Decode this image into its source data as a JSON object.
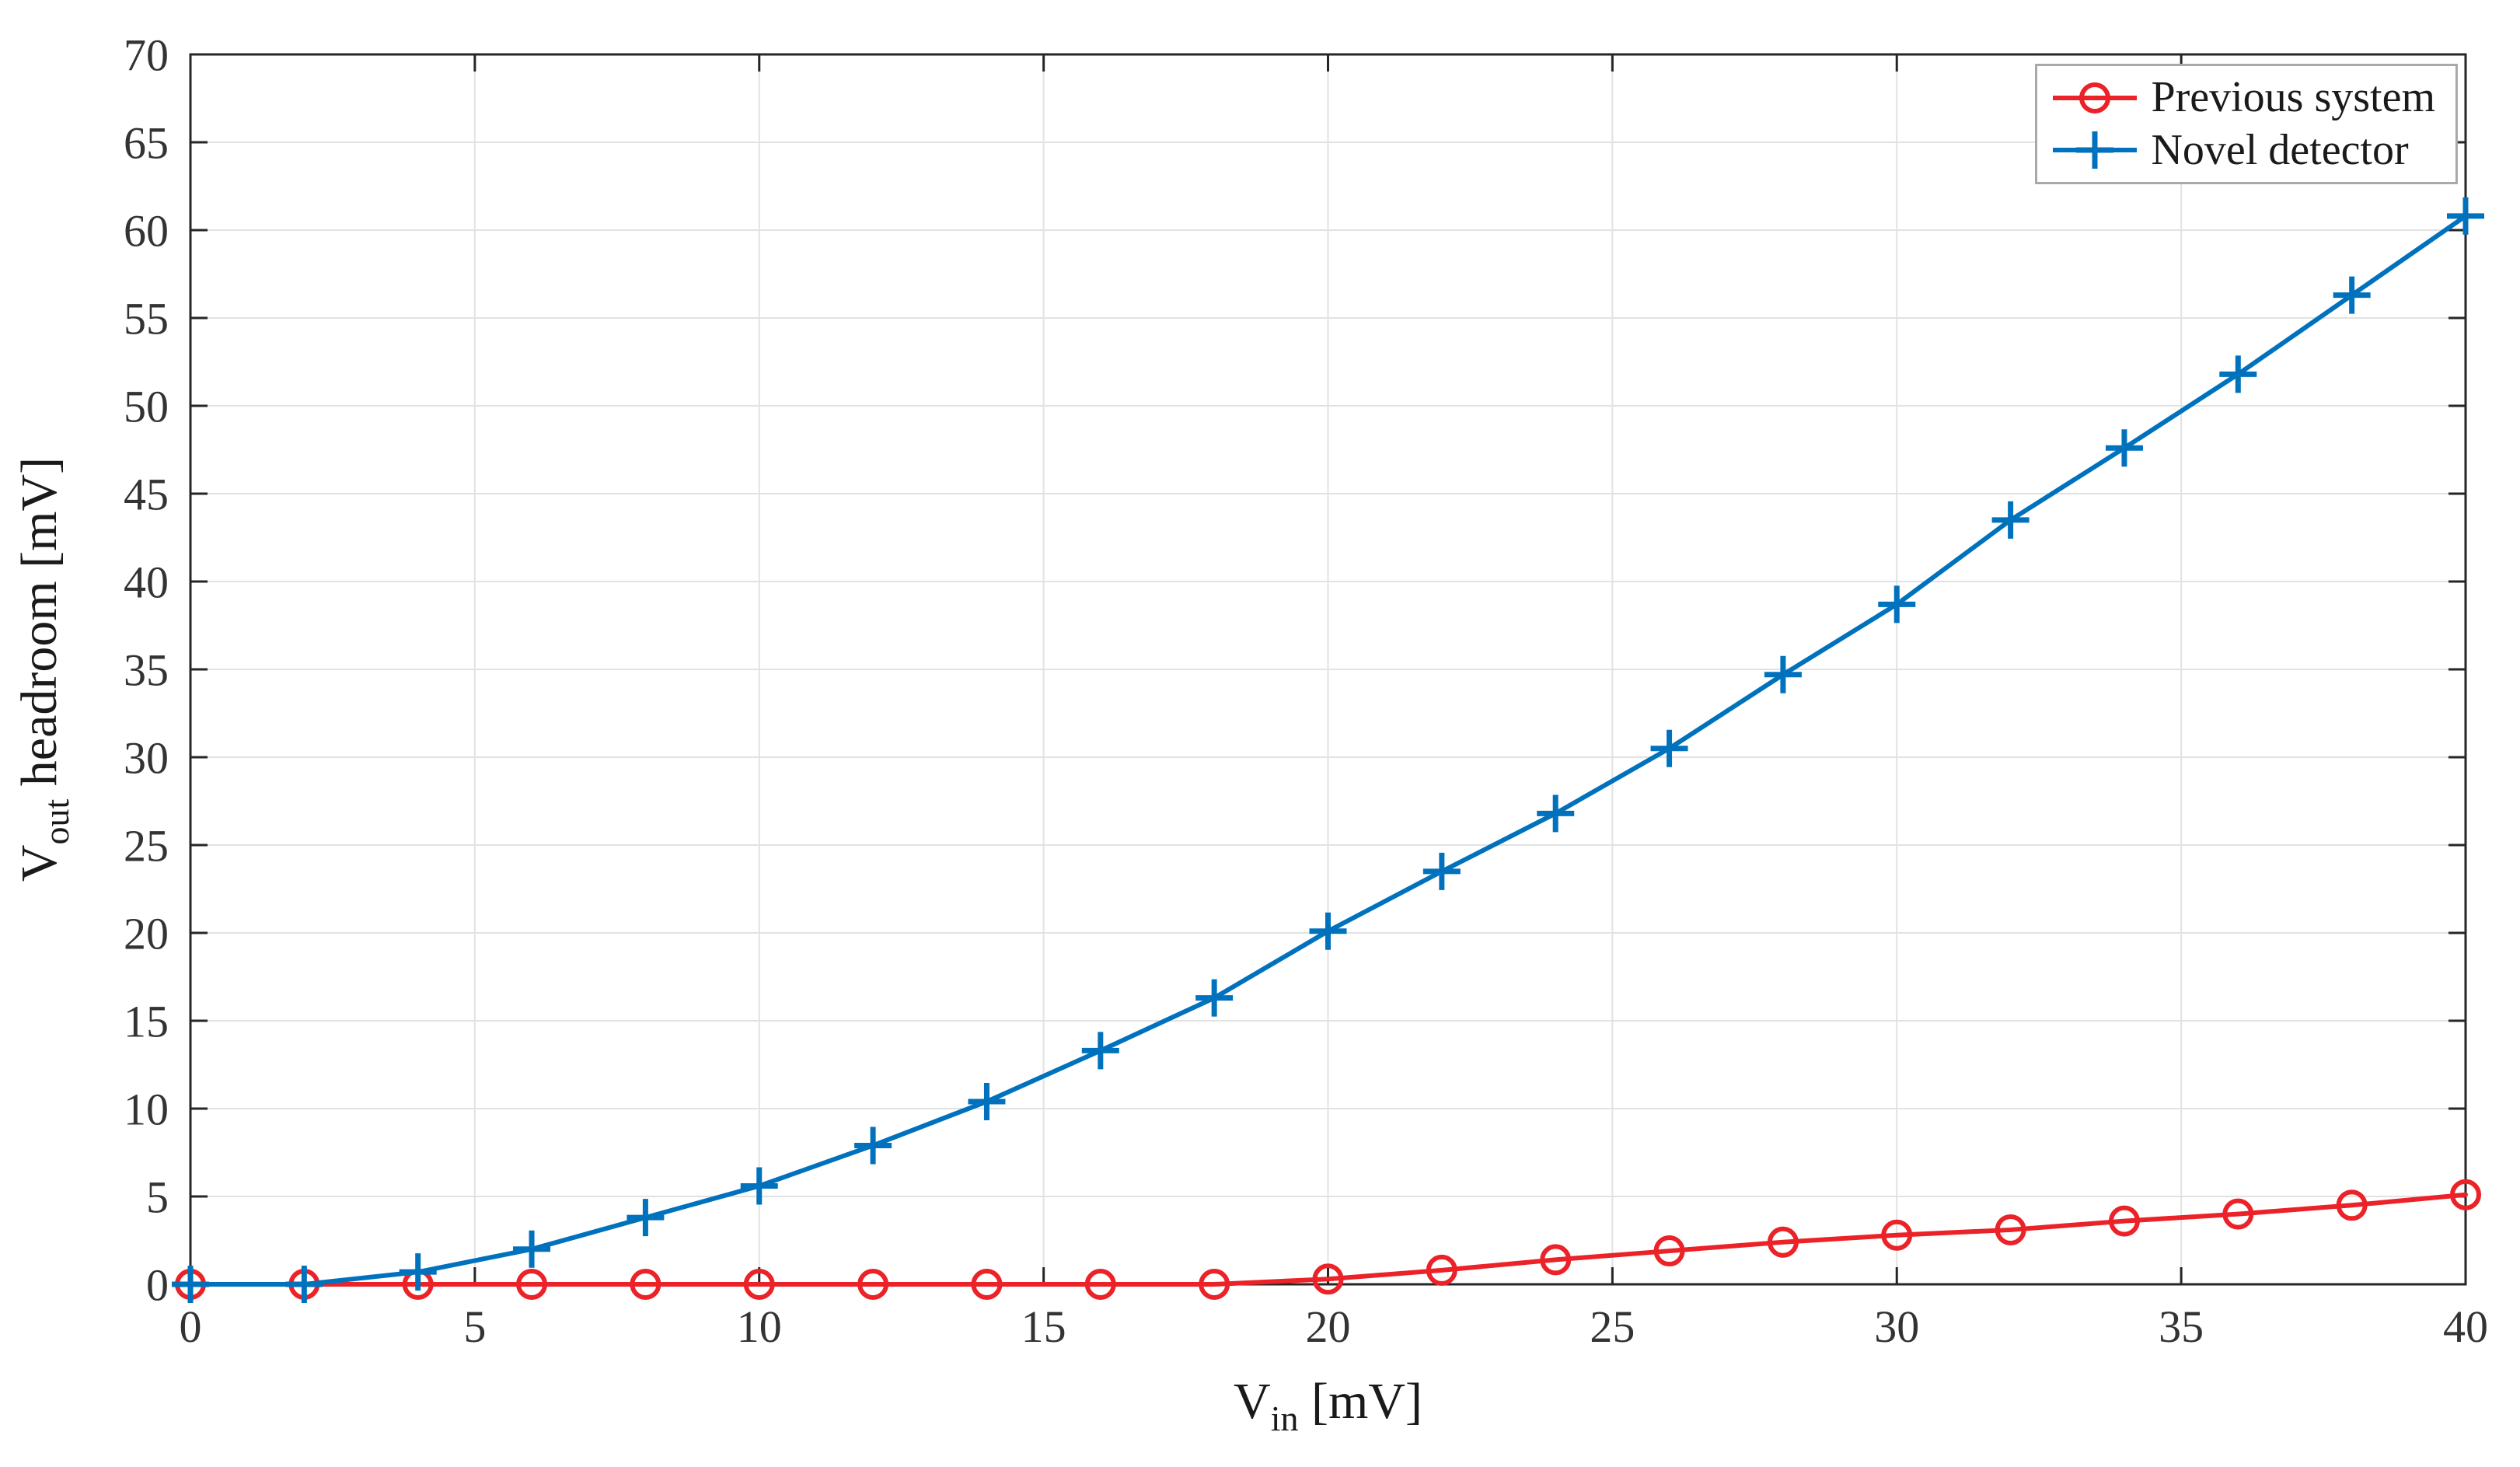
{
  "figure": {
    "background": "#ffffff"
  },
  "chart_data": {
    "type": "line",
    "title": "",
    "xlabel": "V_in [mV]",
    "ylabel": "V_out headroom [mV]",
    "xlabel_parts": {
      "pre": "V",
      "sub": "in",
      "post": " [mV]"
    },
    "ylabel_parts": {
      "pre": "V",
      "sub": "out",
      "post": " headroom [mV]"
    },
    "xlim": [
      0,
      40
    ],
    "ylim": [
      0,
      70
    ],
    "x_ticks": [
      0,
      5,
      10,
      15,
      20,
      25,
      30,
      35,
      40
    ],
    "y_ticks": [
      0,
      5,
      10,
      15,
      20,
      25,
      30,
      35,
      40,
      45,
      50,
      55,
      60,
      65,
      70
    ],
    "grid": true,
    "legend_position": "top-right",
    "x": [
      0,
      2,
      4,
      6,
      8,
      10,
      12,
      14,
      16,
      18,
      20,
      22,
      24,
      26,
      28,
      30,
      32,
      34,
      36,
      38,
      40
    ],
    "series": [
      {
        "name": "Previous system",
        "color": "#eb2228",
        "marker": "circle",
        "values": [
          0,
          0,
          0,
          0,
          0,
          0,
          0,
          0,
          0,
          0,
          0.3,
          0.8,
          1.4,
          1.9,
          2.4,
          2.8,
          3.1,
          3.6,
          4.0,
          4.5,
          5.1
        ]
      },
      {
        "name": "Novel detector",
        "color": "#0072bd",
        "marker": "plus",
        "values": [
          0,
          0,
          0.7,
          2.0,
          3.8,
          5.6,
          7.9,
          10.4,
          13.3,
          16.3,
          20.1,
          23.5,
          26.8,
          30.5,
          34.7,
          38.7,
          43.5,
          47.6,
          51.8,
          56.3,
          60.8
        ]
      }
    ],
    "colors": {
      "grid": "#e2e2e2",
      "axis": "#262626",
      "tick_label": "#333333",
      "legend_border": "#a9a9a9"
    }
  }
}
